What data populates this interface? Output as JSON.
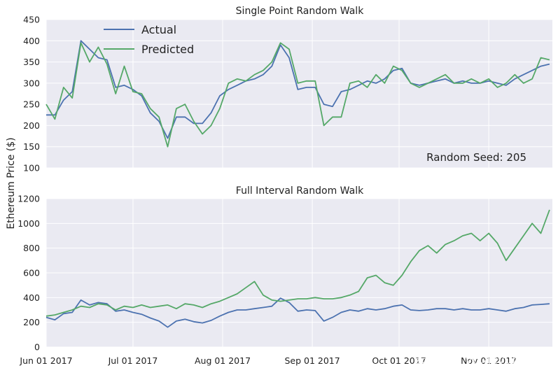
{
  "figure": {
    "ylabel": "Ethereum Price ($)",
    "watermark": "云栖社区 yq.aliyun.com",
    "x_tick_labels": [
      "Jun 01 2017",
      "Jul 01 2017",
      "Aug 01 2017",
      "Sep 01 2017",
      "Oct 01 2017",
      "Nov 01 2017"
    ],
    "colors": {
      "actual": "#4C72B0",
      "predicted": "#55A868",
      "background": "#EAEAF2",
      "grid": "#ffffff"
    }
  },
  "chart_data": [
    {
      "type": "line",
      "title": "Single Point Random Walk",
      "annotation": "Random Seed: 205",
      "ylim": [
        100,
        450
      ],
      "yticks": [
        100,
        150,
        200,
        250,
        300,
        350,
        400,
        450
      ],
      "legend": {
        "position": "top-left",
        "entries": [
          "Actual",
          "Predicted"
        ]
      },
      "x_range_days": [
        0,
        175
      ],
      "x_ticks_days": [
        0,
        30,
        61,
        92,
        122,
        153
      ],
      "series": [
        {
          "name": "Actual",
          "x": [
            0,
            3,
            6,
            9,
            12,
            15,
            18,
            21,
            24,
            27,
            30,
            33,
            36,
            39,
            42,
            45,
            48,
            51,
            54,
            57,
            60,
            63,
            66,
            69,
            72,
            75,
            78,
            81,
            84,
            87,
            90,
            93,
            96,
            99,
            102,
            105,
            108,
            111,
            114,
            117,
            120,
            123,
            126,
            129,
            132,
            135,
            138,
            141,
            144,
            147,
            150,
            153,
            156,
            159,
            162,
            165,
            168,
            171,
            174
          ],
          "values": [
            225,
            225,
            260,
            280,
            400,
            380,
            360,
            355,
            290,
            295,
            285,
            270,
            230,
            210,
            170,
            220,
            220,
            205,
            205,
            230,
            270,
            285,
            295,
            305,
            310,
            320,
            340,
            390,
            360,
            285,
            290,
            290,
            250,
            245,
            280,
            285,
            295,
            305,
            300,
            310,
            330,
            335,
            300,
            295,
            300,
            305,
            310,
            300,
            305,
            300,
            300,
            305,
            300,
            295,
            310,
            320,
            330,
            340,
            345
          ]
        },
        {
          "name": "Predicted",
          "x": [
            0,
            3,
            6,
            9,
            12,
            15,
            18,
            21,
            24,
            27,
            30,
            33,
            36,
            39,
            42,
            45,
            48,
            51,
            54,
            57,
            60,
            63,
            66,
            69,
            72,
            75,
            78,
            81,
            84,
            87,
            90,
            93,
            96,
            99,
            102,
            105,
            108,
            111,
            114,
            117,
            120,
            123,
            126,
            129,
            132,
            135,
            138,
            141,
            144,
            147,
            150,
            153,
            156,
            159,
            162,
            165,
            168,
            171,
            174
          ],
          "values": [
            250,
            215,
            290,
            265,
            395,
            350,
            385,
            345,
            275,
            340,
            280,
            275,
            240,
            220,
            150,
            240,
            250,
            210,
            180,
            200,
            240,
            300,
            310,
            305,
            320,
            330,
            350,
            395,
            380,
            300,
            305,
            305,
            200,
            220,
            220,
            300,
            305,
            290,
            320,
            300,
            340,
            330,
            300,
            290,
            300,
            310,
            320,
            300,
            300,
            310,
            300,
            310,
            290,
            300,
            320,
            300,
            310,
            360,
            355
          ]
        }
      ]
    },
    {
      "type": "line",
      "title": "Full Interval Random Walk",
      "ylim": [
        0,
        1200
      ],
      "yticks": [
        0,
        200,
        400,
        600,
        800,
        1000,
        1200
      ],
      "x_range_days": [
        0,
        175
      ],
      "x_ticks_days": [
        0,
        30,
        61,
        92,
        122,
        153
      ],
      "series": [
        {
          "name": "Actual",
          "x": [
            0,
            3,
            6,
            9,
            12,
            15,
            18,
            21,
            24,
            27,
            30,
            33,
            36,
            39,
            42,
            45,
            48,
            51,
            54,
            57,
            60,
            63,
            66,
            69,
            72,
            75,
            78,
            81,
            84,
            87,
            90,
            93,
            96,
            99,
            102,
            105,
            108,
            111,
            114,
            117,
            120,
            123,
            126,
            129,
            132,
            135,
            138,
            141,
            144,
            147,
            150,
            153,
            156,
            159,
            162,
            165,
            168,
            171,
            174
          ],
          "values": [
            240,
            220,
            270,
            280,
            380,
            340,
            360,
            350,
            290,
            300,
            280,
            265,
            235,
            210,
            160,
            210,
            225,
            205,
            195,
            215,
            250,
            280,
            300,
            300,
            310,
            320,
            330,
            395,
            360,
            290,
            300,
            295,
            210,
            240,
            280,
            300,
            290,
            310,
            300,
            310,
            330,
            340,
            300,
            295,
            300,
            310,
            310,
            300,
            310,
            300,
            300,
            310,
            300,
            290,
            310,
            320,
            340,
            345,
            350
          ]
        },
        {
          "name": "Predicted",
          "x": [
            0,
            3,
            6,
            9,
            12,
            15,
            18,
            21,
            24,
            27,
            30,
            33,
            36,
            39,
            42,
            45,
            48,
            51,
            54,
            57,
            60,
            63,
            66,
            69,
            72,
            75,
            78,
            81,
            84,
            87,
            90,
            93,
            96,
            99,
            102,
            105,
            108,
            111,
            114,
            117,
            120,
            123,
            126,
            129,
            132,
            135,
            138,
            141,
            144,
            147,
            150,
            153,
            156,
            159,
            162,
            165,
            168,
            171,
            174
          ],
          "values": [
            250,
            260,
            280,
            300,
            330,
            320,
            350,
            340,
            300,
            330,
            320,
            340,
            320,
            330,
            340,
            310,
            350,
            340,
            320,
            350,
            370,
            400,
            430,
            480,
            530,
            420,
            380,
            370,
            380,
            390,
            390,
            400,
            390,
            390,
            400,
            420,
            450,
            560,
            580,
            520,
            500,
            580,
            690,
            780,
            820,
            760,
            830,
            860,
            900,
            920,
            860,
            920,
            840,
            700,
            800,
            900,
            1000,
            920,
            1110
          ]
        }
      ]
    }
  ]
}
